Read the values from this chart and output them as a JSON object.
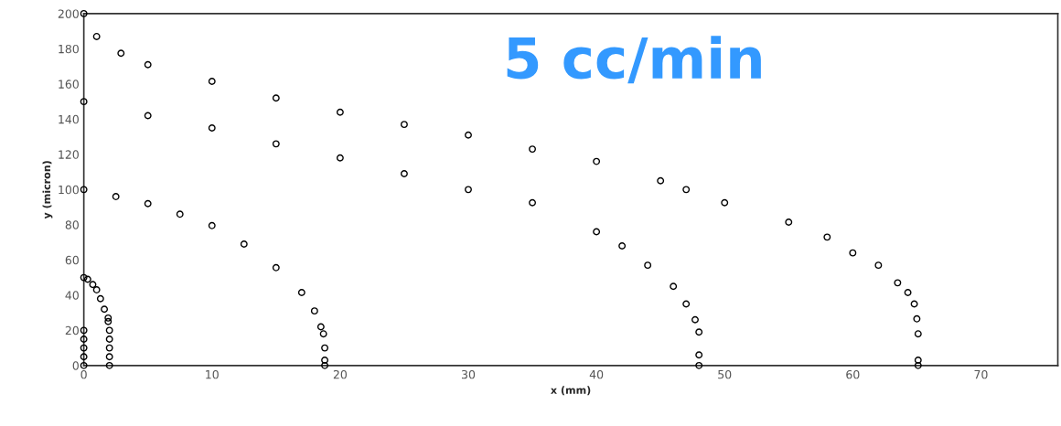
{
  "chart_data": {
    "type": "scatter",
    "xlabel": "x (mm)",
    "ylabel": "y (micron)",
    "annotations": [
      "5 cc/min"
    ],
    "xlim": [
      0,
      76
    ],
    "xticks": [
      0,
      10,
      20,
      30,
      40,
      50,
      60,
      70
    ],
    "ylim": [
      0,
      200
    ],
    "yticks": [
      0,
      20,
      40,
      60,
      80,
      100,
      120,
      140,
      160,
      180,
      200
    ],
    "grid": false,
    "marker": "circle",
    "series": [
      {
        "color": "#000000",
        "x": [
          0,
          0,
          0,
          0,
          0
        ],
        "values": [
          0,
          5,
          10,
          15,
          20
        ]
      },
      {
        "color": "#000000",
        "x": [
          0,
          0.3,
          0.7,
          1,
          1.3,
          1.6,
          1.9,
          1.9,
          2,
          2,
          2,
          2,
          2
        ],
        "values": [
          50,
          49,
          46,
          43,
          38,
          32,
          27,
          25,
          20,
          15,
          10,
          5,
          0
        ]
      },
      {
        "color": "#000000",
        "x": [
          0,
          2.5,
          5,
          7.5,
          10,
          12.5,
          15,
          17,
          18,
          18.5,
          18.7,
          18.8,
          18.8,
          18.8
        ],
        "values": [
          100,
          96,
          92,
          86,
          79.5,
          69,
          55.6,
          41.5,
          31,
          22,
          18,
          10,
          3,
          0
        ]
      },
      {
        "color": "#000000",
        "x": [
          0,
          5,
          10,
          15,
          20,
          25,
          30,
          35,
          40,
          42,
          44,
          46,
          47,
          47.7,
          48,
          48,
          48
        ],
        "values": [
          150,
          142,
          135,
          126,
          118,
          109,
          100,
          92.5,
          76,
          68,
          57,
          45,
          35,
          26,
          19,
          6,
          0
        ]
      },
      {
        "color": "#000000",
        "x": [
          0,
          1,
          2.9,
          5,
          10,
          15,
          20,
          25,
          30,
          35,
          40,
          45,
          47,
          50,
          55,
          58,
          60,
          62,
          63.5,
          64.3,
          64.8,
          65,
          65.1,
          65.1,
          65.1
        ],
        "values": [
          200,
          187,
          177.5,
          171,
          161.5,
          152,
          144,
          137,
          131,
          123,
          116,
          105,
          100,
          92.5,
          81.5,
          73,
          64,
          57,
          47,
          41.5,
          35,
          26.5,
          18,
          3,
          0
        ]
      }
    ]
  }
}
